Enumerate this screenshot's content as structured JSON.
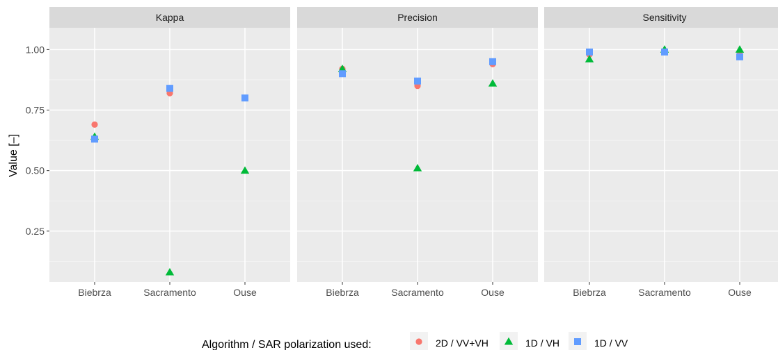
{
  "chart_data": {
    "type": "scatter",
    "ylabel": "Value [–]",
    "ylim": [
      0.04,
      1.09
    ],
    "y_ticks": [
      "0.25",
      "0.50",
      "0.75",
      "1.00"
    ],
    "grid": true,
    "legend_position": "bottom",
    "legend_title": "Algorithm / SAR polarization used:",
    "categories": [
      "Biebrza",
      "Sacramento",
      "Ouse"
    ],
    "panels": [
      {
        "title": "Kappa",
        "series": [
          {
            "name": "2D / VV+VH",
            "values": [
              0.69,
              0.82,
              0.8
            ]
          },
          {
            "name": "1D / VH",
            "values": [
              0.64,
              0.08,
              0.5
            ]
          },
          {
            "name": "1D / VV",
            "values": [
              0.63,
              0.84,
              0.8
            ]
          }
        ]
      },
      {
        "title": "Precision",
        "series": [
          {
            "name": "2D / VV+VH",
            "values": [
              0.92,
              0.85,
              0.94
            ]
          },
          {
            "name": "1D / VH",
            "values": [
              0.92,
              0.51,
              0.86
            ]
          },
          {
            "name": "1D / VV",
            "values": [
              0.9,
              0.87,
              0.95
            ]
          }
        ]
      },
      {
        "title": "Sensitivity",
        "series": [
          {
            "name": "2D / VV+VH",
            "values": [
              0.98,
              0.99,
              0.98
            ]
          },
          {
            "name": "1D / VH",
            "values": [
              0.96,
              1.0,
              1.0
            ]
          },
          {
            "name": "1D / VV",
            "values": [
              0.99,
              0.99,
              0.97
            ]
          }
        ]
      }
    ],
    "colors": {
      "2D / VV+VH": "#F8766D",
      "1D / VH": "#00BA38",
      "1D / VV": "#619CFF"
    },
    "shapes": {
      "2D / VV+VH": "circle",
      "1D / VH": "triangle",
      "1D / VV": "square"
    }
  }
}
